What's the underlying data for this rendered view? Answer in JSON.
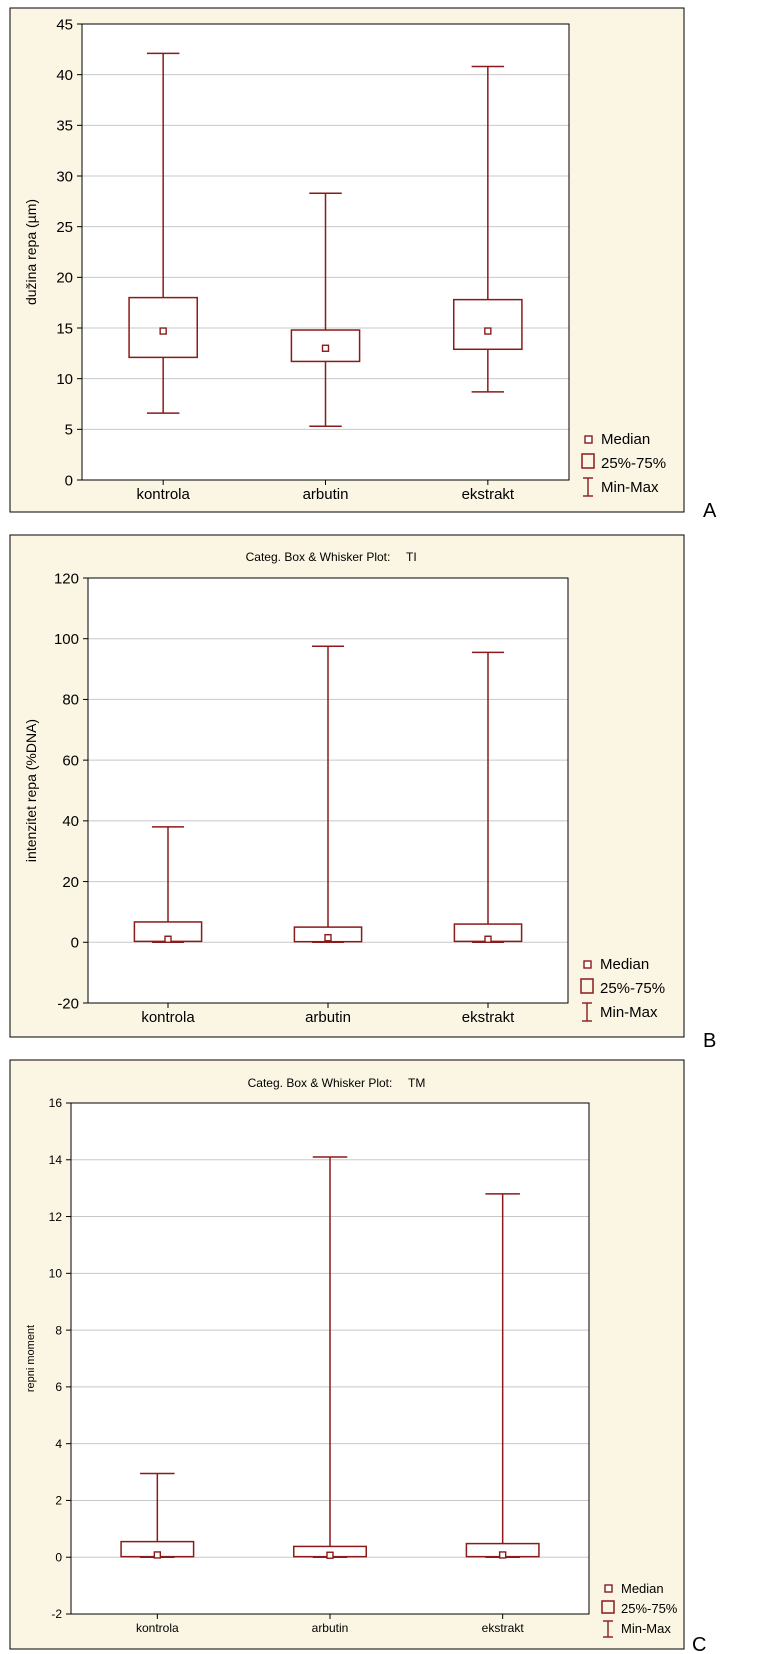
{
  "colors": {
    "panel_bg": "#FBF6E3",
    "plot_bg": "#FFFFFF",
    "mark": "#8B1A1A",
    "grid": "#C8C8C8",
    "frame": "#000000"
  },
  "legend": {
    "median": "Median",
    "box": "25%-75%",
    "whisker": "Min-Max"
  },
  "chart_data": [
    {
      "panel_letter": "A",
      "type": "box",
      "title": "",
      "ylabel": "dužina repa (µm)",
      "ylim": [
        0,
        45
      ],
      "yticks": [
        0,
        5,
        10,
        15,
        20,
        25,
        30,
        35,
        40,
        45
      ],
      "grid": true,
      "legend_position": "bottom-right, outside plot",
      "categories": [
        "kontrola",
        "arbutin",
        "ekstrakt"
      ],
      "min": [
        6.6,
        5.3,
        8.7
      ],
      "q1": [
        12.1,
        11.7,
        12.9
      ],
      "median": [
        14.7,
        13.0,
        14.7
      ],
      "q3": [
        18.0,
        14.8,
        17.8
      ],
      "max": [
        42.1,
        28.3,
        40.8
      ]
    },
    {
      "panel_letter": "B",
      "type": "box",
      "title": "Categ. Box & Whisker Plot:",
      "title_var": "TI",
      "ylabel": "intenzitet repa (%DNA)",
      "ylim": [
        -20,
        120
      ],
      "yticks": [
        -20,
        0,
        20,
        40,
        60,
        80,
        100,
        120
      ],
      "grid": true,
      "legend_position": "bottom-right, outside plot",
      "categories": [
        "kontrola",
        "arbutin",
        "ekstrakt"
      ],
      "min": [
        0.0,
        0.0,
        0.0
      ],
      "q1": [
        0.3,
        0.2,
        0.3
      ],
      "median": [
        1.0,
        1.5,
        1.0
      ],
      "q3": [
        6.7,
        5.0,
        6.0
      ],
      "max": [
        38.0,
        97.5,
        95.5
      ]
    },
    {
      "panel_letter": "C",
      "type": "box",
      "title": "Categ. Box & Whisker Plot:",
      "title_var": "TM",
      "ylabel": "repni moment",
      "ylim": [
        -2,
        16
      ],
      "yticks": [
        -2,
        0,
        2,
        4,
        6,
        8,
        10,
        12,
        14,
        16
      ],
      "grid": true,
      "legend_position": "bottom-right, outside plot",
      "categories": [
        "kontrola",
        "arbutin",
        "ekstrakt"
      ],
      "min": [
        0.0,
        0.0,
        0.0
      ],
      "q1": [
        0.02,
        0.02,
        0.02
      ],
      "median": [
        0.08,
        0.07,
        0.08
      ],
      "q3": [
        0.55,
        0.38,
        0.48
      ],
      "max": [
        2.95,
        14.1,
        12.8
      ]
    }
  ]
}
